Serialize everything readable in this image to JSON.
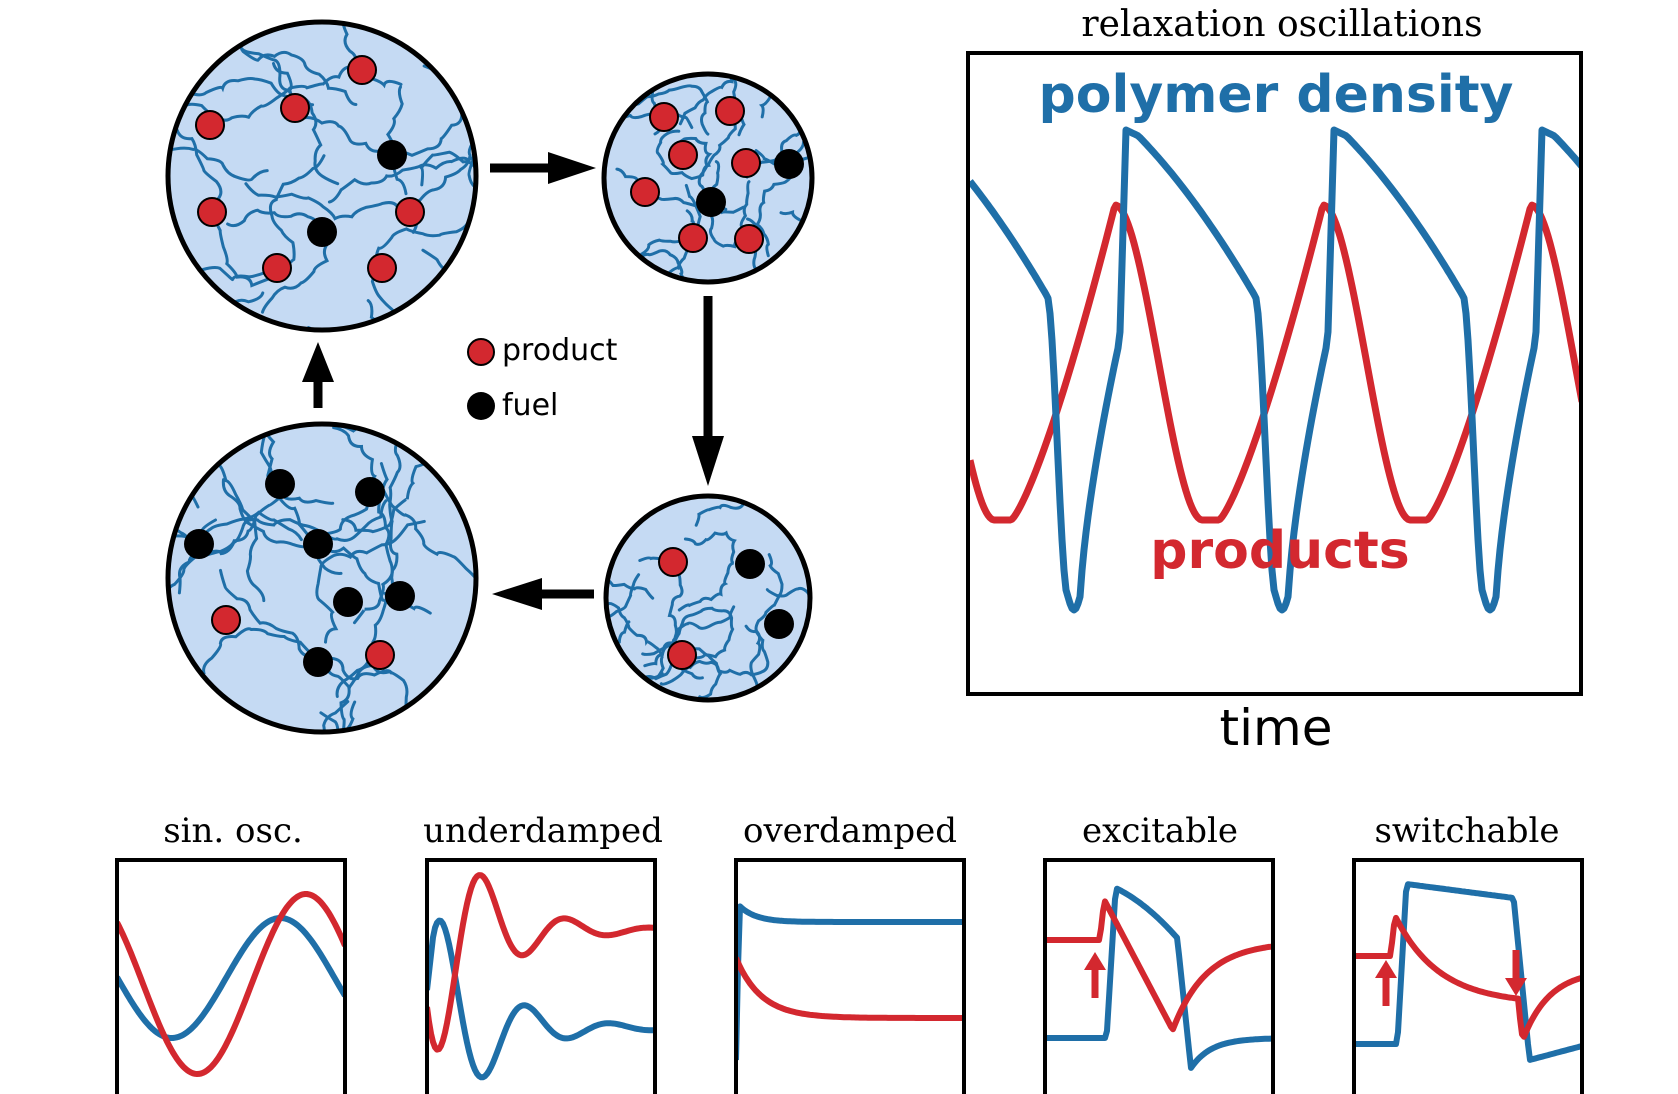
{
  "colors": {
    "blue": "#1f6fa8",
    "red": "#d3282f",
    "black": "#000000",
    "gel_fill": "#c5daf3",
    "white": "#ffffff"
  },
  "legend": {
    "product_label": "product",
    "fuel_label": "fuel"
  },
  "main_plot": {
    "title": "relaxation oscillations",
    "blue_label": "polymer density",
    "red_label": "products",
    "xlabel": "time"
  },
  "panels": [
    {
      "title": "sin. osc."
    },
    {
      "title": "underdamped"
    },
    {
      "title": "overdamped"
    },
    {
      "title": "excitable"
    },
    {
      "title": "switchable"
    }
  ]
}
